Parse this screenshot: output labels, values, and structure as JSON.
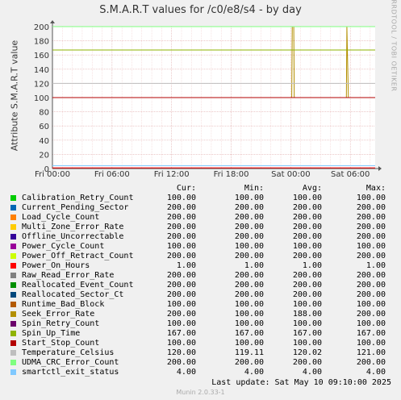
{
  "chart_data": {
    "type": "line",
    "title": "S.M.A.R.T values for /c0/e8/s4 - by day",
    "ylabel": "Attribute S.M.A.R.T value",
    "side_label": "RRDTOOL / TOBI OETIKER",
    "ylim": [
      0,
      200
    ],
    "yticks": [
      0,
      20,
      40,
      60,
      80,
      100,
      120,
      140,
      160,
      180,
      200
    ],
    "xticks": [
      "Fri 00:00",
      "Fri 06:00",
      "Fri 12:00",
      "Fri 18:00",
      "Sat 00:00",
      "Sat 06:00"
    ],
    "grid": true,
    "column_headers": [
      "Cur:",
      "Min:",
      "Avg:",
      "Max:"
    ],
    "series": [
      {
        "name": "Calibration_Retry_Count",
        "color": "#00cc00",
        "cur": "100.00",
        "min": "100.00",
        "avg": "100.00",
        "max": "100.00"
      },
      {
        "name": "Current_Pending_Sector",
        "color": "#0066b3",
        "cur": "200.00",
        "min": "200.00",
        "avg": "200.00",
        "max": "200.00"
      },
      {
        "name": "Load_Cycle_Count",
        "color": "#ff8000",
        "cur": "200.00",
        "min": "200.00",
        "avg": "200.00",
        "max": "200.00"
      },
      {
        "name": "Multi_Zone_Error_Rate",
        "color": "#ffcc00",
        "cur": "200.00",
        "min": "200.00",
        "avg": "200.00",
        "max": "200.00"
      },
      {
        "name": "Offline_Uncorrectable",
        "color": "#330099",
        "cur": "200.00",
        "min": "200.00",
        "avg": "200.00",
        "max": "200.00"
      },
      {
        "name": "Power_Cycle_Count",
        "color": "#990099",
        "cur": "100.00",
        "min": "100.00",
        "avg": "100.00",
        "max": "100.00"
      },
      {
        "name": "Power_Off_Retract_Count",
        "color": "#ccff00",
        "cur": "200.00",
        "min": "200.00",
        "avg": "200.00",
        "max": "200.00"
      },
      {
        "name": "Power_On_Hours",
        "color": "#ff0000",
        "cur": "1.00",
        "min": "1.00",
        "avg": "1.00",
        "max": "1.00"
      },
      {
        "name": "Raw_Read_Error_Rate",
        "color": "#808080",
        "cur": "200.00",
        "min": "200.00",
        "avg": "200.00",
        "max": "200.00"
      },
      {
        "name": "Reallocated_Event_Count",
        "color": "#008f00",
        "cur": "200.00",
        "min": "200.00",
        "avg": "200.00",
        "max": "200.00"
      },
      {
        "name": "Reallocated_Sector_Ct",
        "color": "#00487d",
        "cur": "200.00",
        "min": "200.00",
        "avg": "200.00",
        "max": "200.00"
      },
      {
        "name": "Runtime_Bad_Block",
        "color": "#b35a00",
        "cur": "100.00",
        "min": "100.00",
        "avg": "100.00",
        "max": "100.00"
      },
      {
        "name": "Seek_Error_Rate",
        "color": "#b38f00",
        "cur": "200.00",
        "min": "100.00",
        "avg": "188.00",
        "max": "200.00"
      },
      {
        "name": "Spin_Retry_Count",
        "color": "#6b006b",
        "cur": "100.00",
        "min": "100.00",
        "avg": "100.00",
        "max": "100.00"
      },
      {
        "name": "Spin_Up_Time",
        "color": "#8fb300",
        "cur": "167.00",
        "min": "167.00",
        "avg": "167.00",
        "max": "167.00"
      },
      {
        "name": "Start_Stop_Count",
        "color": "#b30000",
        "cur": "100.00",
        "min": "100.00",
        "avg": "100.00",
        "max": "100.00"
      },
      {
        "name": "Temperature_Celsius",
        "color": "#bebebe",
        "cur": "120.00",
        "min": "119.11",
        "avg": "120.02",
        "max": "121.00"
      },
      {
        "name": "UDMA_CRC_Error_Count",
        "color": "#80ff80",
        "cur": "200.00",
        "min": "200.00",
        "avg": "200.00",
        "max": "200.00"
      },
      {
        "name": "smartctl_exit_status",
        "color": "#80c9ff",
        "cur": "4.00",
        "min": "4.00",
        "avg": "4.00",
        "max": "4.00"
      }
    ]
  },
  "last_update": "Last update:  Sat May 10 09:10:00 2025",
  "footer": "Munin 2.0.33-1"
}
